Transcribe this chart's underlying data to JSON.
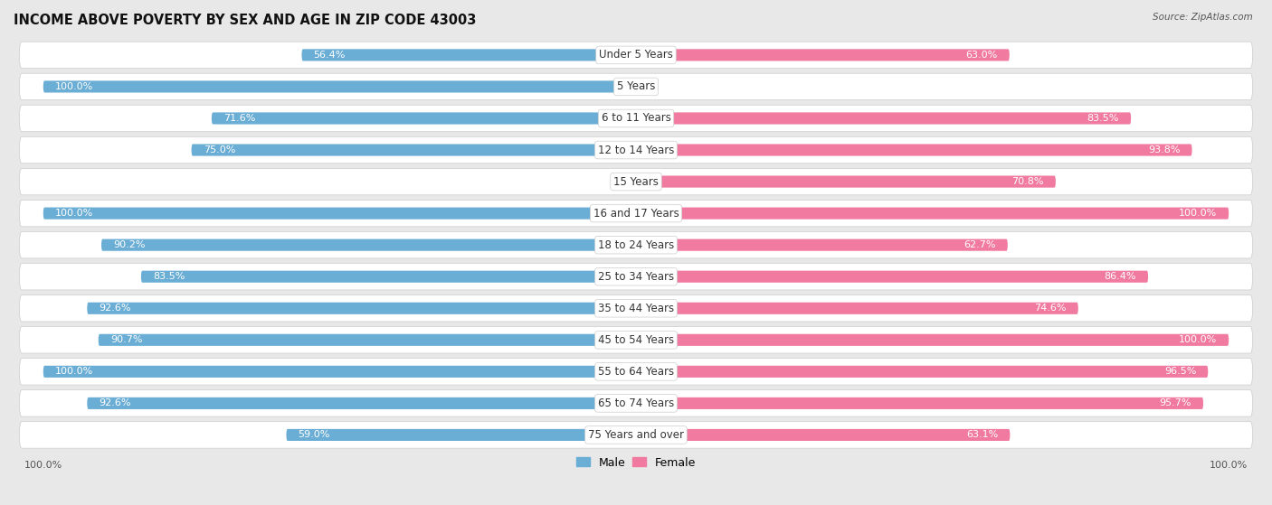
{
  "title": "INCOME ABOVE POVERTY BY SEX AND AGE IN ZIP CODE 43003",
  "source": "Source: ZipAtlas.com",
  "categories": [
    "Under 5 Years",
    "5 Years",
    "6 to 11 Years",
    "12 to 14 Years",
    "15 Years",
    "16 and 17 Years",
    "18 to 24 Years",
    "25 to 34 Years",
    "35 to 44 Years",
    "45 to 54 Years",
    "55 to 64 Years",
    "65 to 74 Years",
    "75 Years and over"
  ],
  "male_values": [
    56.4,
    100.0,
    71.6,
    75.0,
    0.0,
    100.0,
    90.2,
    83.5,
    92.6,
    90.7,
    100.0,
    92.6,
    59.0
  ],
  "female_values": [
    63.0,
    0.0,
    83.5,
    93.8,
    70.8,
    100.0,
    62.7,
    86.4,
    74.6,
    100.0,
    96.5,
    95.7,
    63.1
  ],
  "male_color": "#6aadd5",
  "male_color_light": "#c5dff0",
  "female_color": "#f07aa0",
  "female_color_light": "#f9c0d4",
  "male_label": "Male",
  "female_label": "Female",
  "bg_color": "#e8e8e8",
  "row_bg_color": "#ffffff",
  "row_border_color": "#cccccc",
  "title_fontsize": 10.5,
  "label_fontsize": 8.5,
  "value_fontsize": 8,
  "source_fontsize": 7.5
}
